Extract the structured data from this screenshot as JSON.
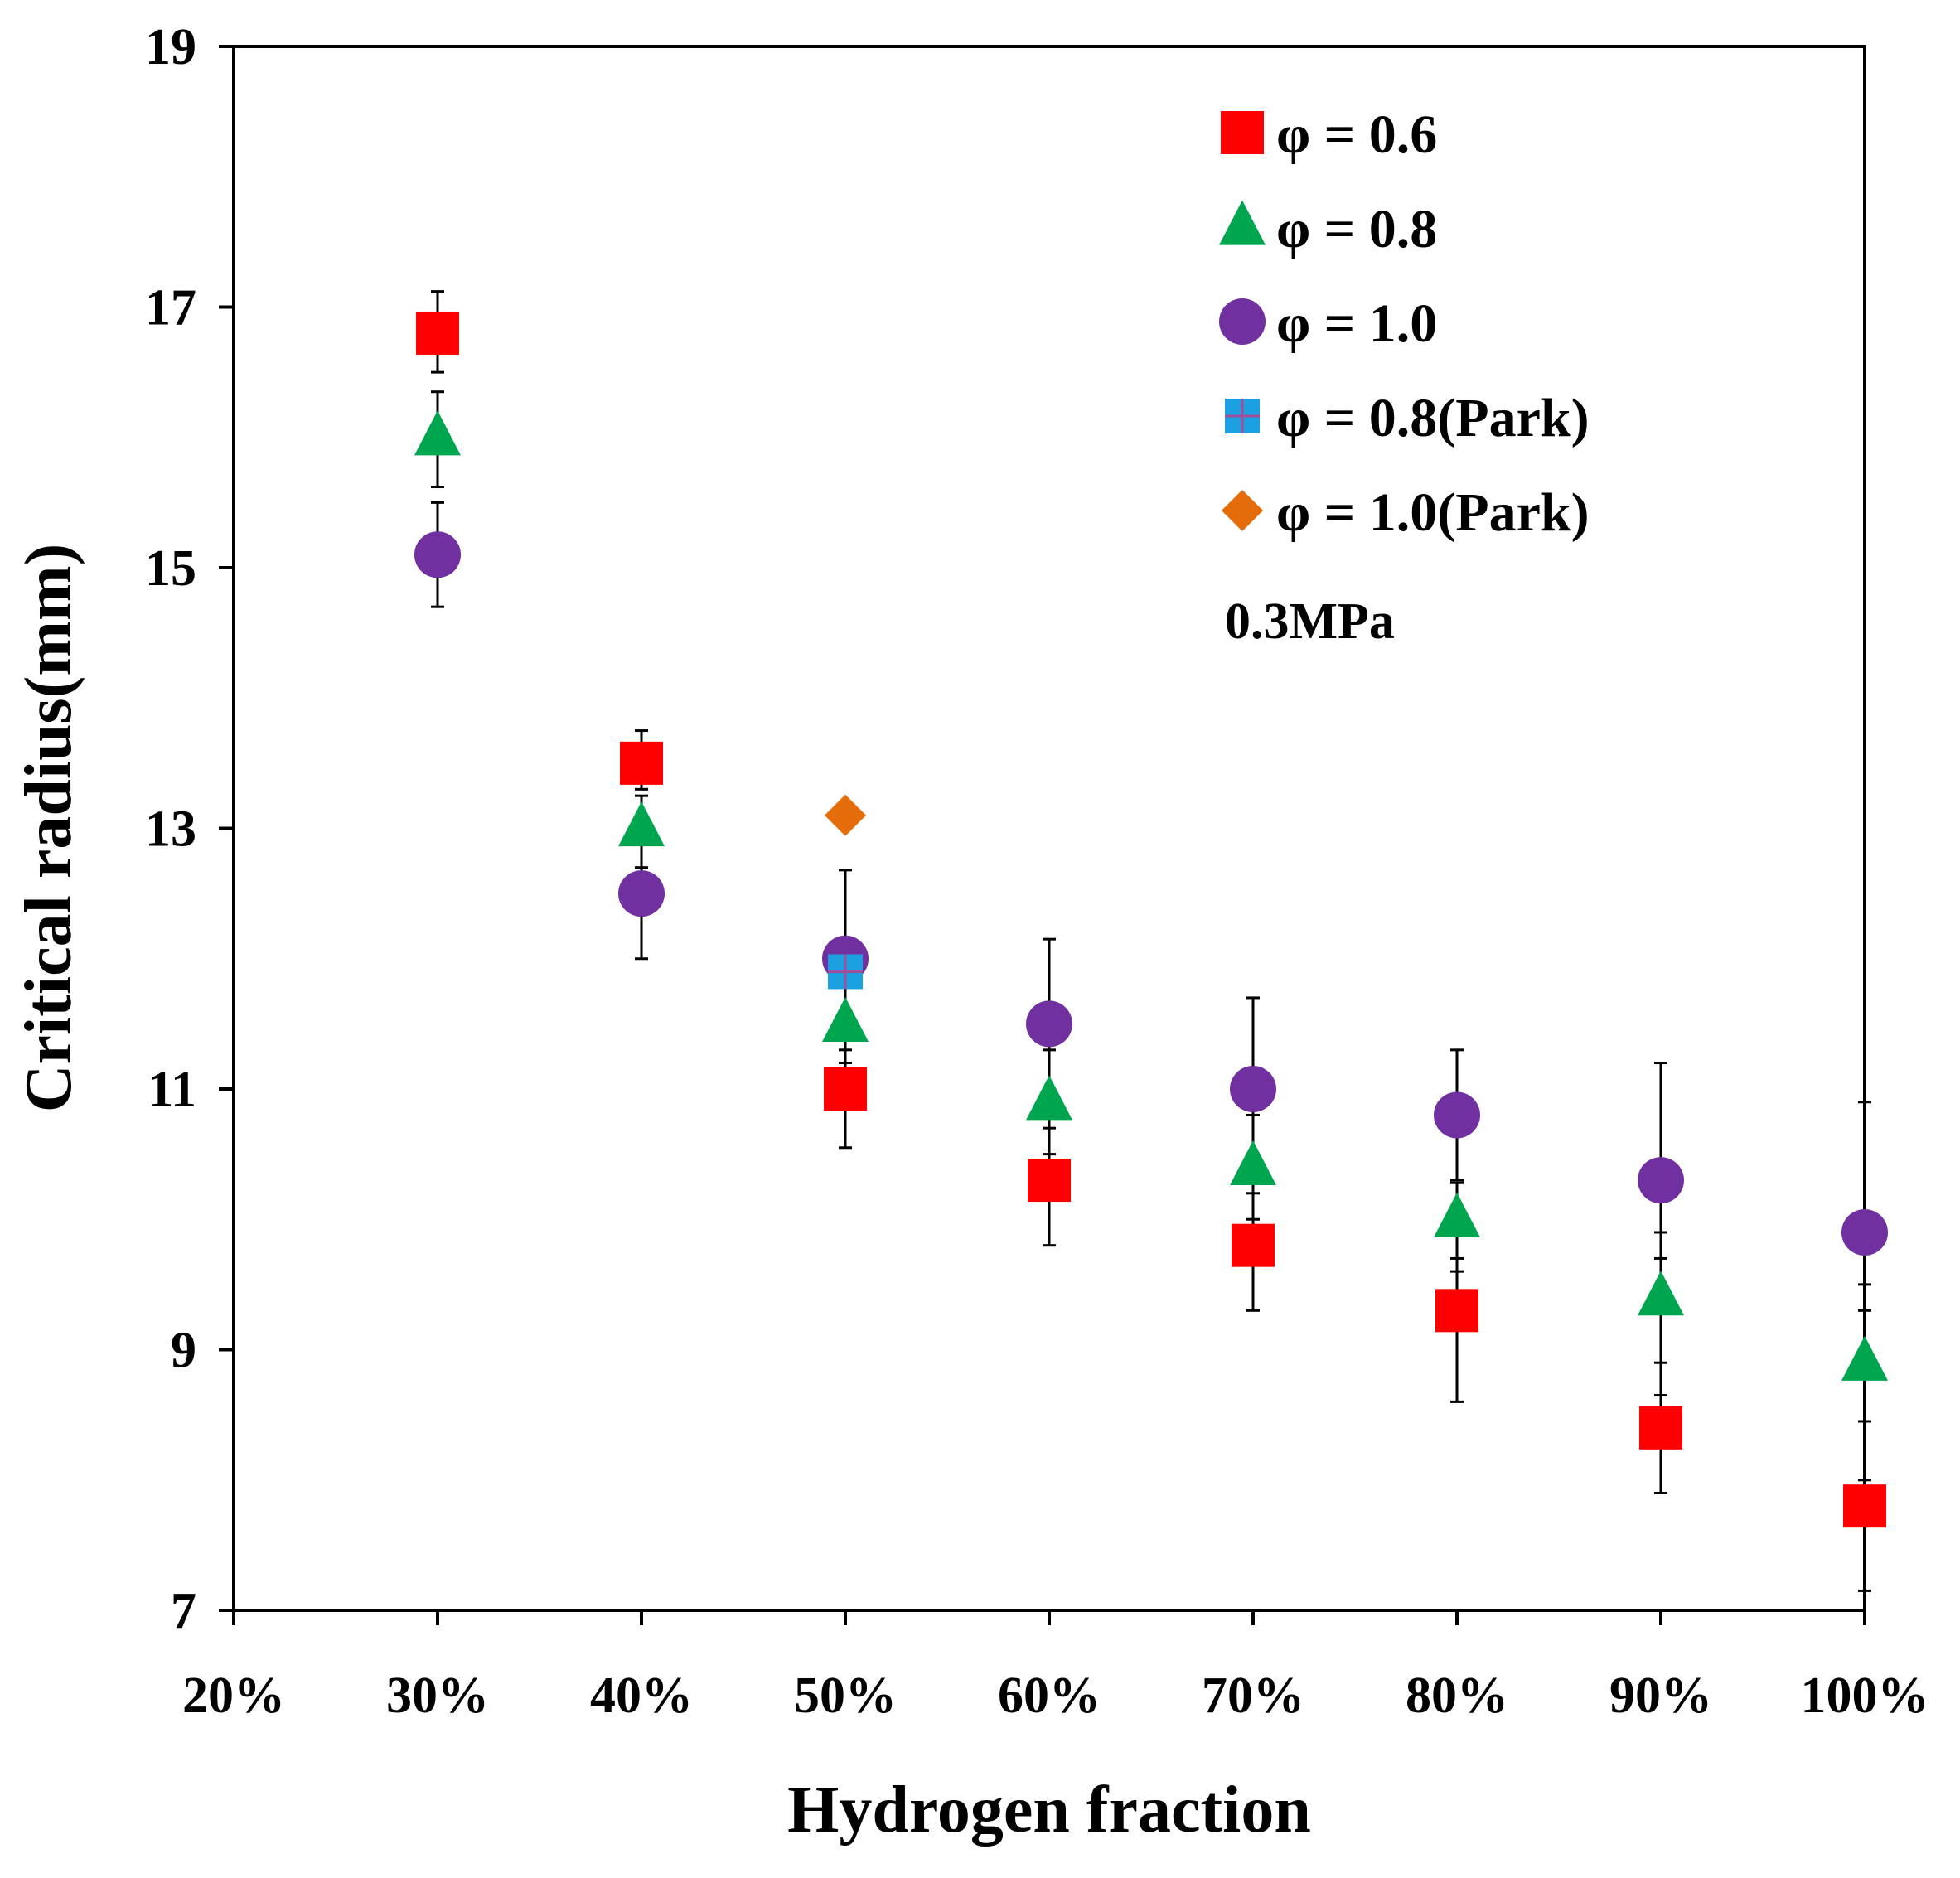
{
  "chart_data": {
    "type": "scatter",
    "xlabel": "Hydrogen fraction",
    "ylabel": "Critical radius(mm)",
    "annotation": "0.3MPa",
    "xlim": [
      0.2,
      1.0
    ],
    "ylim": [
      7,
      19
    ],
    "x_tick_labels": [
      "20%",
      "30%",
      "40%",
      "50%",
      "60%",
      "70%",
      "80%",
      "90%",
      "100%"
    ],
    "x_ticks": [
      0.2,
      0.3,
      0.4,
      0.5,
      0.6,
      0.7,
      0.8,
      0.9,
      1.0
    ],
    "y_tick_labels": [
      "7",
      "9",
      "11",
      "13",
      "15",
      "17",
      "19"
    ],
    "y_ticks": [
      7,
      9,
      11,
      13,
      15,
      17,
      19
    ],
    "grid": false,
    "legend_position": "top-right",
    "series": [
      {
        "name": "φ = 0.6",
        "marker": "square",
        "color": "#ff0000",
        "x": [
          0.3,
          0.4,
          0.5,
          0.6,
          0.7,
          0.8,
          0.9,
          1.0
        ],
        "y": [
          16.8,
          13.5,
          11.0,
          10.3,
          9.8,
          9.3,
          8.4,
          7.8
        ],
        "err_low": [
          16.5,
          13.3,
          10.55,
          9.8,
          9.3,
          8.6,
          7.9,
          7.15
        ],
        "err_high": [
          17.12,
          13.75,
          11.3,
          10.7,
          10.2,
          9.7,
          8.9,
          8.45
        ]
      },
      {
        "name": "φ = 0.8",
        "marker": "triangle",
        "color": "#00a550",
        "x": [
          0.3,
          0.4,
          0.5,
          0.6,
          0.7,
          0.8,
          0.9,
          1.0
        ],
        "y": [
          16.0,
          13.0,
          11.5,
          10.9,
          10.4,
          10.0,
          9.4,
          8.9
        ],
        "err_low": [
          15.62,
          12.7,
          11.2,
          10.5,
          10.0,
          9.6,
          8.65,
          8.0
        ],
        "err_high": [
          16.35,
          13.25,
          11.9,
          11.3,
          10.8,
          10.28,
          9.9,
          9.5
        ]
      },
      {
        "name": "φ = 1.0",
        "marker": "circle",
        "color": "#7030a0",
        "x": [
          0.3,
          0.4,
          0.5,
          0.6,
          0.7,
          0.8,
          0.9,
          1.0
        ],
        "y": [
          15.1,
          12.5,
          12.0,
          11.5,
          11.0,
          10.8,
          10.3,
          9.9
        ],
        "err_low": [
          14.7,
          12.0,
          11.4,
          11.0,
          10.5,
          10.3,
          9.7,
          9.3
        ],
        "err_high": [
          15.5,
          12.95,
          12.68,
          12.15,
          11.7,
          11.3,
          11.2,
          10.9
        ]
      },
      {
        "name": "φ = 0.8(Park)",
        "marker": "square-plus",
        "color": "#1ba1e2",
        "x": [
          0.5
        ],
        "y": [
          11.9
        ]
      },
      {
        "name": "φ = 1.0(Park)",
        "marker": "diamond",
        "color": "#e46c0a",
        "x": [
          0.5
        ],
        "y": [
          13.1
        ]
      }
    ]
  }
}
